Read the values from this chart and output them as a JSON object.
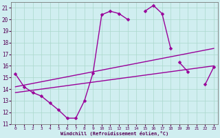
{
  "xlabel": "Windchill (Refroidissement éolien,°C)",
  "xlim": [
    -0.5,
    23.5
  ],
  "ylim": [
    11,
    21.5
  ],
  "yticks": [
    11,
    12,
    13,
    14,
    15,
    16,
    17,
    18,
    19,
    20,
    21
  ],
  "xticks": [
    0,
    1,
    2,
    3,
    4,
    5,
    6,
    7,
    8,
    9,
    10,
    11,
    12,
    13,
    14,
    15,
    16,
    17,
    18,
    19,
    20,
    21,
    22,
    23
  ],
  "background_color": "#d0eef0",
  "grid_color": "#aad8cc",
  "line_color": "#990099",
  "series": [
    {
      "x": [
        0,
        1,
        2,
        3,
        4,
        5,
        6,
        7,
        8,
        9,
        10,
        11,
        12,
        13,
        14,
        15,
        16,
        17,
        18,
        19,
        20,
        21,
        22,
        23
      ],
      "y": [
        15.3,
        14.2,
        13.7,
        13.4,
        12.8,
        12.2,
        11.5,
        11.5,
        13.0,
        15.4,
        20.4,
        20.7,
        20.5,
        20.0,
        null,
        20.7,
        21.2,
        20.5,
        17.5,
        null,
        null,
        null,
        null,
        null
      ],
      "marker": "D",
      "markersize": 2.5,
      "linewidth": 1.0
    },
    {
      "x": [
        19,
        20,
        21,
        22,
        23
      ],
      "y": [
        16.3,
        15.5,
        null,
        14.4,
        15.9
      ],
      "marker": "D",
      "markersize": 2.5,
      "linewidth": 1.0
    },
    {
      "x": [
        0,
        23
      ],
      "y": [
        14.2,
        17.5
      ],
      "marker": null,
      "markersize": 0,
      "linewidth": 1.0
    },
    {
      "x": [
        0,
        23
      ],
      "y": [
        13.7,
        16.0
      ],
      "marker": null,
      "markersize": 0,
      "linewidth": 1.0
    }
  ]
}
